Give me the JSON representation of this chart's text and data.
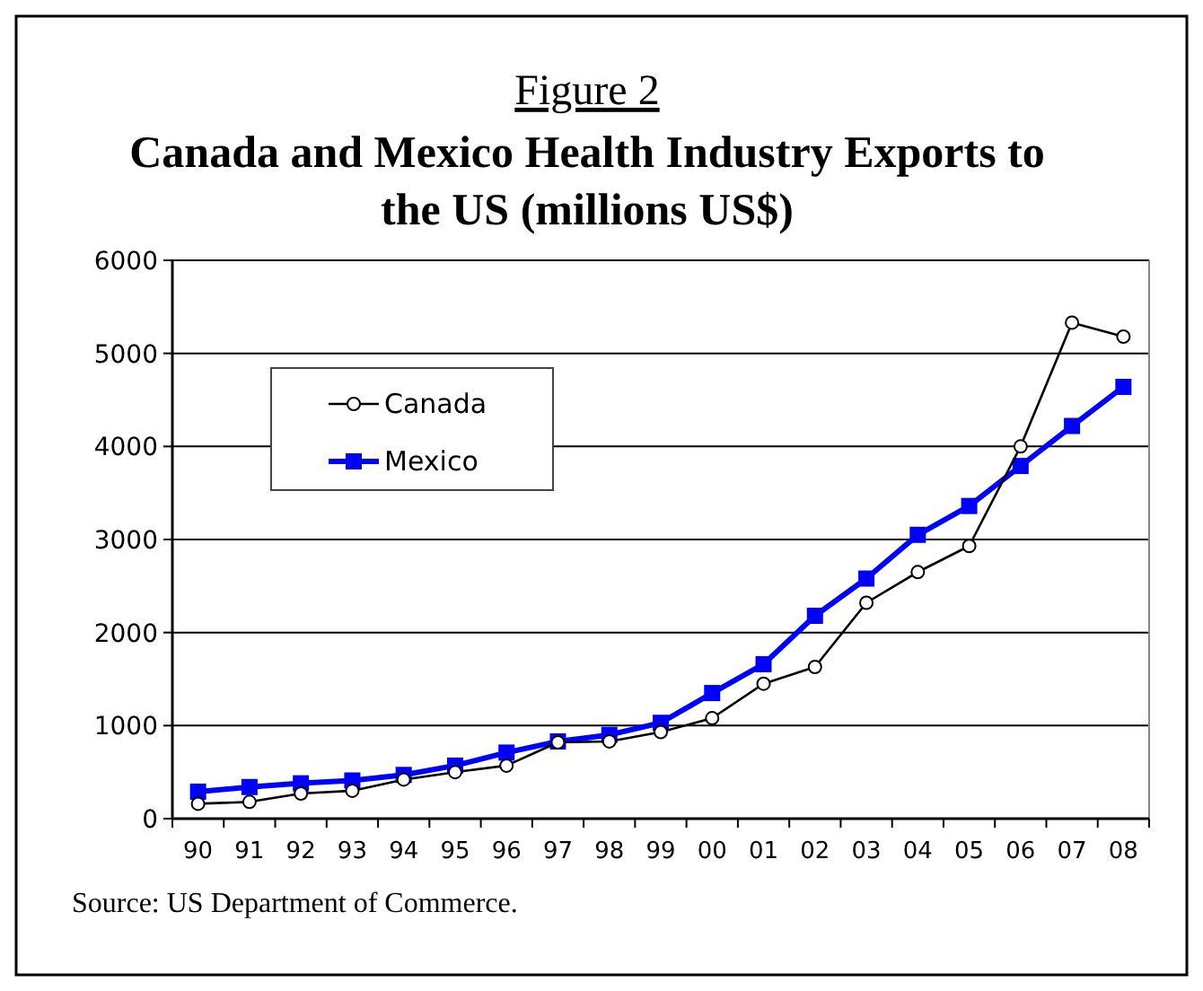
{
  "chart_data": {
    "type": "line",
    "title": "Figure 2",
    "subtitle": "Canada and Mexico Health Industry Exports to the US (millions US$)",
    "categories": [
      "90",
      "91",
      "92",
      "93",
      "94",
      "95",
      "96",
      "97",
      "98",
      "99",
      "00",
      "01",
      "02",
      "03",
      "04",
      "05",
      "06",
      "07",
      "08"
    ],
    "series": [
      {
        "name": "Canada",
        "color": "#000000",
        "marker": "circle",
        "values": [
          160,
          180,
          270,
          300,
          420,
          500,
          570,
          820,
          830,
          930,
          1080,
          1450,
          1630,
          2320,
          2650,
          2930,
          4000,
          5330,
          5180
        ]
      },
      {
        "name": "Mexico",
        "color": "#0000ff",
        "marker": "square",
        "values": [
          290,
          340,
          380,
          410,
          470,
          570,
          710,
          830,
          900,
          1030,
          1350,
          1660,
          2180,
          2580,
          3050,
          3360,
          3790,
          4220,
          4640
        ]
      }
    ],
    "ylim": [
      0,
      6000
    ],
    "yticks": [
      0,
      1000,
      2000,
      3000,
      4000,
      5000,
      6000
    ],
    "grid": "y",
    "legend": "top left",
    "annotations": [
      "Source: US Department of Commerce."
    ]
  }
}
